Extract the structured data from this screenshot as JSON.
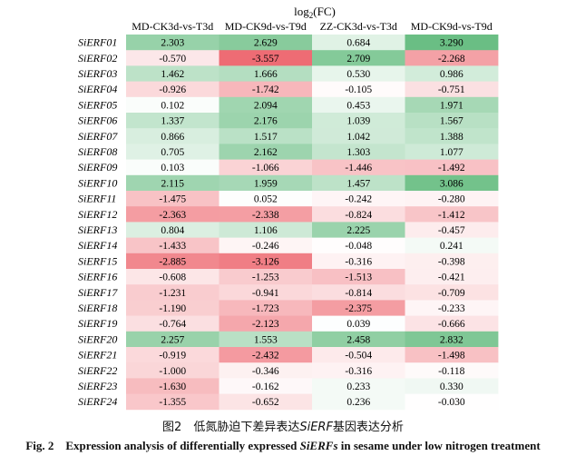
{
  "chart_data": {
    "type": "heatmap",
    "title_main": "log",
    "title_sub": "2",
    "title_tail": "(FC)",
    "columns": [
      "MD-CK3d-vs-T3d",
      "MD-CK9d-vs-T9d",
      "ZZ-CK3d-vs-T3d",
      "MD-CK9d-vs-T9d"
    ],
    "rows": [
      "SiERF01",
      "SiERF02",
      "SiERF03",
      "SiERF04",
      "SiERF05",
      "SiERF06",
      "SiERF07",
      "SiERF08",
      "SiERF09",
      "SiERF10",
      "SiERF11",
      "SiERF12",
      "SiERF13",
      "SiERF14",
      "SiERF15",
      "SiERF16",
      "SiERF17",
      "SiERF18",
      "SiERF19",
      "SiERF20",
      "SiERF21",
      "SiERF22",
      "SiERF23",
      "SiERF24"
    ],
    "values": [
      [
        "2.303",
        "2.629",
        "0.684",
        "3.290"
      ],
      [
        "-0.570",
        "-3.557",
        "2.709",
        "-2.268"
      ],
      [
        "1.462",
        "1.666",
        "0.530",
        "0.986"
      ],
      [
        "-0.926",
        "-1.742",
        "-0.105",
        "-0.751"
      ],
      [
        "0.102",
        "2.094",
        "0.453",
        "1.971"
      ],
      [
        "1.337",
        "2.176",
        "1.039",
        "1.567"
      ],
      [
        "0.866",
        "1.517",
        "1.042",
        "1.388"
      ],
      [
        "0.705",
        "2.162",
        "1.303",
        "1.077"
      ],
      [
        "0.103",
        "-1.066",
        "-1.446",
        "-1.492"
      ],
      [
        "2.115",
        "1.959",
        "1.457",
        "3.086"
      ],
      [
        "-1.475",
        "0.052",
        "-0.242",
        "-0.280"
      ],
      [
        "-2.363",
        "-2.338",
        "-0.824",
        "-1.412"
      ],
      [
        "0.804",
        "1.106",
        "2.225",
        "-0.457"
      ],
      [
        "-1.433",
        "-0.246",
        "-0.048",
        "0.241"
      ],
      [
        "-2.885",
        "-3.126",
        "-0.316",
        "-0.398"
      ],
      [
        "-0.608",
        "-1.253",
        "-1.513",
        "-0.421"
      ],
      [
        "-1.231",
        "-0.941",
        "-0.814",
        "-0.709"
      ],
      [
        "-1.190",
        "-1.723",
        "-2.375",
        "-0.233"
      ],
      [
        "-0.764",
        "-2.123",
        "0.039",
        "-0.666"
      ],
      [
        "2.257",
        "1.553",
        "2.458",
        "2.832"
      ],
      [
        "-0.919",
        "-2.432",
        "-0.504",
        "-1.498"
      ],
      [
        "-1.000",
        "-0.346",
        "-0.316",
        "-0.118"
      ],
      [
        "-1.630",
        "-0.162",
        "0.233",
        "0.330"
      ],
      [
        "-1.355",
        "-0.652",
        "0.236",
        "-0.030"
      ]
    ],
    "colors": {
      "positive": "#5cb878",
      "negative": "#ee6a72",
      "neutral": "#ffffff"
    }
  },
  "caption": {
    "cn_prefix": "图2　低氮胁迫下差异表达",
    "cn_italic": "SiERF",
    "cn_suffix": "基因表达分析",
    "en_prefix": "Fig. 2　Expression analysis of differentially expressed ",
    "en_italic": "SiERFs",
    "en_suffix": " in sesame under low nitrogen treatment"
  }
}
